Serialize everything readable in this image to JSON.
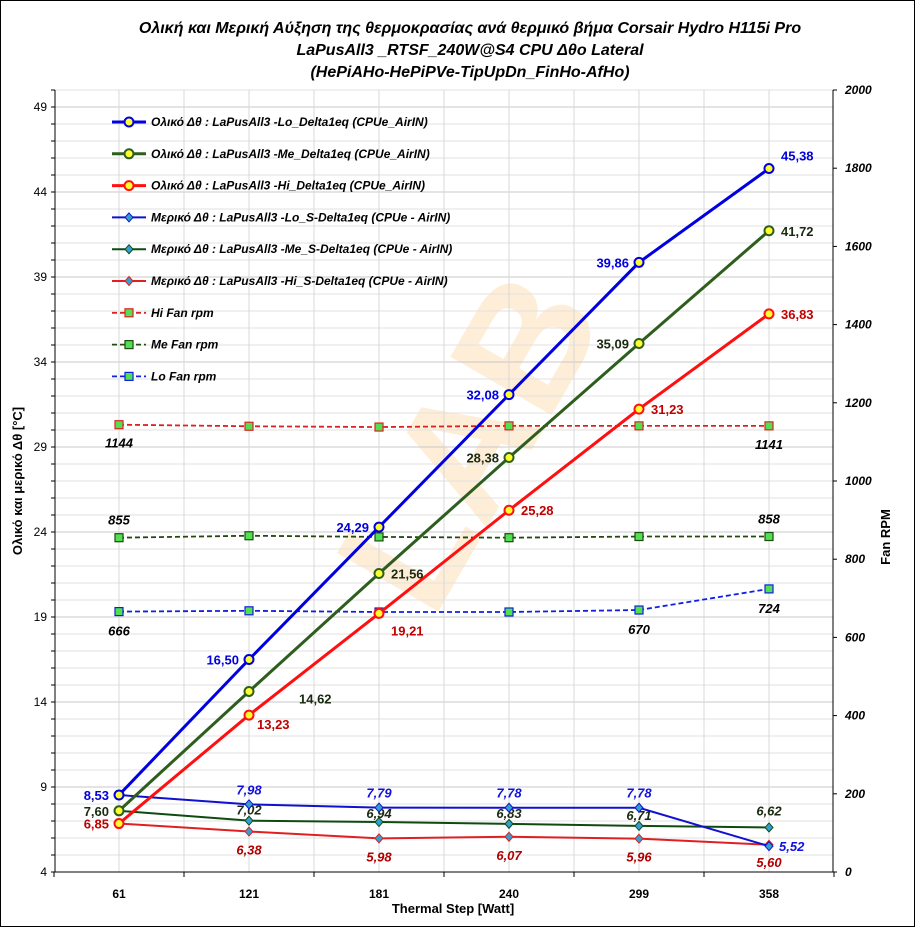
{
  "chart_data": {
    "type": "line",
    "title": [
      "Ολική και Μερική Αύξηση της θερμοκρασίας ανά θερμικό βήμα   Corsair Hydro H115i Pro",
      "LaPusAll3 _RTSF_240W@S4   CPU  Δθο Lateral",
      "(HePiAHo-HePiPVe-TipUpDn_FinHo-AfHo)"
    ],
    "xlabel": "Thermal Step [Watt]",
    "ylabel": "Ολικό  και  μερικό  Δθ  [°C]",
    "y2label": "Fan RPM",
    "categories": [
      "61",
      "121",
      "181",
      "240",
      "299",
      "358"
    ],
    "ylim": [
      4,
      50
    ],
    "yticks": [
      4,
      9,
      14,
      19,
      24,
      29,
      34,
      39,
      44,
      49
    ],
    "y2lim": [
      0,
      2000
    ],
    "y2ticks": [
      0,
      200,
      400,
      600,
      800,
      1000,
      1200,
      1400,
      1600,
      1800,
      2000
    ],
    "grid": true,
    "legend_placement": "top-left",
    "series": [
      {
        "name": "Ολικό Δθ : LaPusAll3 -Lo_Delta1eq (CPUe_AirIN)",
        "axis": "left",
        "color": "#0000e0",
        "label_color": "#0000e0",
        "marker": "circle",
        "style": "solid-thick",
        "values": [
          8.53,
          16.5,
          24.29,
          32.08,
          39.86,
          45.38
        ],
        "labels": [
          "8,53",
          "16,50",
          "24,29",
          "32,08",
          "39,86",
          "45,38"
        ]
      },
      {
        "name": "Ολικό Δθ : LaPusAll3 -Me_Delta1eq (CPUe_AirIN)",
        "axis": "left",
        "color": "#2e5e1e",
        "label_color": "#1a2a10",
        "marker": "circle",
        "style": "solid-thick",
        "values": [
          7.6,
          14.62,
          21.56,
          28.38,
          35.09,
          41.72
        ],
        "labels": [
          "7,60",
          "14,62",
          "21,56",
          "28,38",
          "35,09",
          "41,72"
        ]
      },
      {
        "name": "Ολικό Δθ : LaPusAll3 -Hi_Delta1eq (CPUe_AirIN)",
        "axis": "left",
        "color": "#ff1010",
        "label_color": "#c00000",
        "marker": "circle",
        "style": "solid-thick",
        "values": [
          6.85,
          13.23,
          19.21,
          25.28,
          31.23,
          36.83
        ],
        "labels": [
          "6,85",
          "13,23",
          "19,21",
          "25,28",
          "31,23",
          "36,83"
        ]
      },
      {
        "name": "Μερικό Δθ : LaPusAll3 -Lo_S-Delta1eq (CPUe - AirIN)",
        "axis": "left",
        "color": "#1010d0",
        "label_color": "#1010e0",
        "marker": "diamond",
        "style": "solid",
        "values": [
          8.53,
          7.98,
          7.79,
          7.78,
          7.78,
          5.52
        ],
        "labels": [
          "",
          "7,98",
          "7,79",
          "7,78",
          "7,78",
          "5,52"
        ]
      },
      {
        "name": "Μερικό Δθ : LaPusAll3 -Me_S-Delta1eq (CPUe - AirIN)",
        "axis": "left",
        "color": "#0f4a10",
        "label_color": "#1a2a10",
        "marker": "diamond",
        "style": "solid",
        "values": [
          7.6,
          7.02,
          6.94,
          6.83,
          6.71,
          6.62
        ],
        "labels": [
          "",
          "7,02",
          "6,94",
          "6,83",
          "6,71",
          "6,62"
        ]
      },
      {
        "name": "Μερικό Δθ : LaPusAll3 -Hi_S-Delta1eq (CPUe - AirIN)",
        "axis": "left",
        "color": "#e02020",
        "label_color": "#b00000",
        "marker": "diamond",
        "style": "solid",
        "values": [
          6.85,
          6.38,
          5.98,
          6.07,
          5.96,
          5.6
        ],
        "labels": [
          "",
          "6,38",
          "5,98",
          "6,07",
          "5,96",
          "5,60"
        ]
      },
      {
        "name": "Hi Fan  rpm",
        "axis": "right",
        "color": "#e02020",
        "label_color": "#000000",
        "marker": "square",
        "style": "dashed",
        "values": [
          1144,
          1140,
          1138,
          1141,
          1141,
          1141
        ],
        "labels": [
          "1144",
          "",
          "",
          "",
          "",
          "1141"
        ]
      },
      {
        "name": "Me Fan  rpm",
        "axis": "right",
        "color": "#1f4a10",
        "label_color": "#000000",
        "marker": "square",
        "style": "dashed",
        "values": [
          855,
          860,
          857,
          855,
          858,
          858
        ],
        "labels": [
          "855",
          "",
          "",
          "",
          "",
          "858"
        ]
      },
      {
        "name": "Lo Fan  rpm",
        "axis": "right",
        "color": "#1020e0",
        "label_color": "#000000",
        "marker": "square",
        "style": "dashed",
        "values": [
          666,
          668,
          665,
          665,
          670,
          724
        ],
        "labels": [
          "666",
          "",
          "",
          "",
          "670",
          "724"
        ]
      }
    ]
  }
}
